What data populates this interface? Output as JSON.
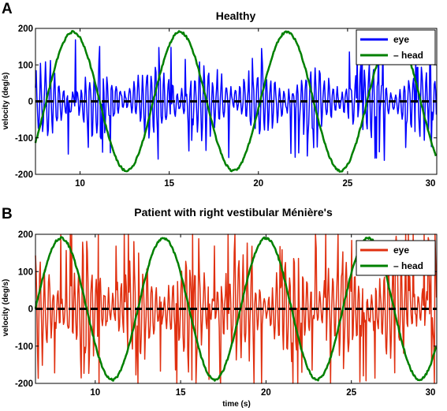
{
  "chart_data": [
    {
      "type": "line",
      "panel_label": "A",
      "title": "Healthy",
      "xlabel": "",
      "ylabel": "velocity (deg/s)",
      "xlim": [
        7.5,
        30
      ],
      "ylim": [
        -200,
        200
      ],
      "xticks": [
        10,
        15,
        20,
        25,
        30
      ],
      "yticks": [
        -200,
        -100,
        0,
        100,
        200
      ],
      "legend": "top-right",
      "zero_line": {
        "y": 0,
        "style": "dashed",
        "color": "#000000"
      },
      "series": [
        {
          "name": "eye",
          "color": "#0000ff",
          "kind": "eye",
          "envelope": 100,
          "dropout": 0.05
        },
        {
          "name": "– head",
          "color": "#008000",
          "kind": "sine",
          "amplitude": 190,
          "period": 6,
          "peak_x": 9.6
        }
      ]
    },
    {
      "type": "line",
      "panel_label": "B",
      "title": "Patient with right vestibular Ménière's",
      "xlabel": "time (s)",
      "ylabel": "velocity (deg/s)",
      "xlim": [
        6.5,
        30
      ],
      "ylim": [
        -200,
        200
      ],
      "xticks": [
        10,
        15,
        20,
        25,
        30
      ],
      "yticks": [
        -200,
        -100,
        0,
        100,
        200
      ],
      "legend": "top-right",
      "zero_line": {
        "y": 0,
        "style": "dashed",
        "color": "#000000"
      },
      "series": [
        {
          "name": "eye",
          "color": "#e03010",
          "kind": "eye",
          "envelope": 140,
          "dropout": 0.12
        },
        {
          "name": "– head",
          "color": "#008000",
          "kind": "sine",
          "amplitude": 190,
          "period": 6,
          "peak_x": 8
        }
      ]
    }
  ]
}
